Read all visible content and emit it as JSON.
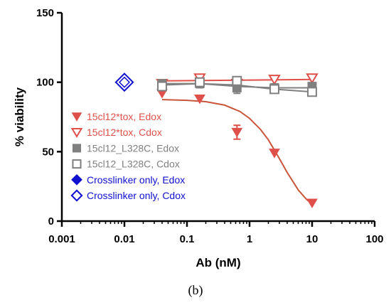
{
  "chart_data": {
    "type": "scatter",
    "title": "",
    "xlabel": "Ab (nM)",
    "ylabel": "% viability",
    "xscale": "log",
    "xlim": [
      0.001,
      100
    ],
    "ylim": [
      0,
      150
    ],
    "x_ticks": [
      "0.001",
      "0.01",
      "0.1",
      "1",
      "10",
      "100"
    ],
    "y_ticks": [
      "0",
      "50",
      "100",
      "150"
    ],
    "legend_position": "left",
    "panel_label": "(b)",
    "series": [
      {
        "name": "15cl12*tox, Edox",
        "marker": "triangle-down-filled",
        "color": "#e0504a",
        "x": [
          0.04,
          0.16,
          0.63,
          2.5,
          10
        ],
        "y": [
          92,
          88,
          64,
          49,
          13
        ],
        "err": [
          0,
          0,
          5,
          0,
          0
        ]
      },
      {
        "name": "15cl12*tox, Cdox",
        "marker": "triangle-down-open",
        "color": "#e0504a",
        "x": [
          0.04,
          0.16,
          0.63,
          2.5,
          10
        ],
        "y": [
          99,
          103,
          99,
          102,
          103
        ],
        "err": [
          0,
          0,
          0,
          0,
          0
        ]
      },
      {
        "name": "15cl12_L328C, Edox",
        "marker": "square-filled",
        "color": "#808080",
        "x": [
          0.04,
          0.16,
          0.63,
          2.5,
          10
        ],
        "y": [
          99,
          99,
          96,
          96,
          97
        ],
        "err": [
          0,
          3,
          4,
          0,
          0
        ]
      },
      {
        "name": "15cl12_L328C, Cdox",
        "marker": "square-open",
        "color": "#808080",
        "x": [
          0.04,
          0.16,
          0.63,
          2.5,
          10
        ],
        "y": [
          97,
          100,
          101,
          95,
          93
        ],
        "err": [
          0,
          0,
          0,
          0,
          0
        ]
      },
      {
        "name": "Crosslinker only, Edox",
        "marker": "diamond-filled",
        "color": "#1010d0",
        "x": [
          0.01
        ],
        "y": [
          100
        ],
        "err": [
          0
        ]
      },
      {
        "name": "Crosslinker only, Cdox",
        "marker": "diamond-open",
        "color": "#1010d0",
        "x": [
          0.01
        ],
        "y": [
          100
        ],
        "err": [
          0
        ]
      }
    ],
    "fits": [
      {
        "series": "15cl12*tox, Edox",
        "color": "#c9553a",
        "x": [
          0.04,
          0.1,
          0.2,
          0.4,
          0.7,
          1.0,
          1.5,
          2.0,
          3.0,
          4.0,
          6.0,
          8.0,
          10
        ],
        "y": [
          87.5,
          87,
          86,
          83.5,
          79,
          74,
          66,
          58.5,
          45,
          35,
          22.5,
          16,
          12
        ]
      },
      {
        "series": "15cl12*tox, Cdox",
        "color": "#e0504a",
        "x": [
          0.04,
          10
        ],
        "y": [
          101,
          102
        ]
      },
      {
        "series": "15cl12_L328C, Edox",
        "color": "#808080",
        "x": [
          0.04,
          0.16,
          0.63,
          2.5,
          10
        ],
        "y": [
          99,
          99,
          97,
          96,
          96
        ]
      },
      {
        "series": "15cl12_L328C, Cdox",
        "color": "#808080",
        "x": [
          0.04,
          0.16,
          0.63,
          2.5,
          10
        ],
        "y": [
          98,
          99,
          98,
          95,
          93
        ]
      }
    ]
  }
}
